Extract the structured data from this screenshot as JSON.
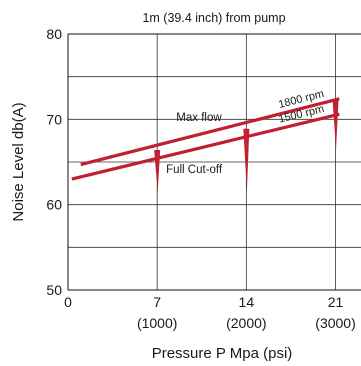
{
  "chart_data": {
    "type": "line",
    "title": "1m (39.4 inch) from pump",
    "xlabel": "Pressure P Mpa (psi)",
    "ylabel": "Noise Level db(A)",
    "xlim": [
      0,
      23
    ],
    "ylim": [
      50,
      80
    ],
    "x_ticks": [
      {
        "value": 0,
        "label": "0",
        "sub": ""
      },
      {
        "value": 7,
        "label": "7",
        "sub": "(1000)"
      },
      {
        "value": 14,
        "label": "14",
        "sub": "(2000)"
      },
      {
        "value": 21,
        "label": "21",
        "sub": "(3000)"
      }
    ],
    "y_ticks": [
      {
        "value": 50,
        "label": "50"
      },
      {
        "value": 60,
        "label": "60"
      },
      {
        "value": 70,
        "label": "70"
      },
      {
        "value": 80,
        "label": "80"
      }
    ],
    "grid_y_values": [
      55,
      60,
      65,
      70,
      75
    ],
    "grid_x_values": [
      7,
      14,
      21
    ],
    "grid": true,
    "line_color": "#c0202f",
    "series": [
      {
        "name": "1800 rpm",
        "x": [
          1,
          21.3
        ],
        "values": [
          64.7,
          72.4
        ]
      },
      {
        "name": "1500 rpm",
        "x": [
          0.3,
          21.3
        ],
        "values": [
          63.0,
          70.6
        ]
      }
    ],
    "drops": [
      {
        "x": 7,
        "from": 66.4,
        "to": 61.5
      },
      {
        "x": 14,
        "from": 68.9,
        "to": 61.5
      },
      {
        "x": 21,
        "from": 72.3,
        "to": 66.5
      }
    ],
    "annotations": {
      "max_flow": "Max flow",
      "full_cutoff": "Full Cut-off"
    }
  }
}
